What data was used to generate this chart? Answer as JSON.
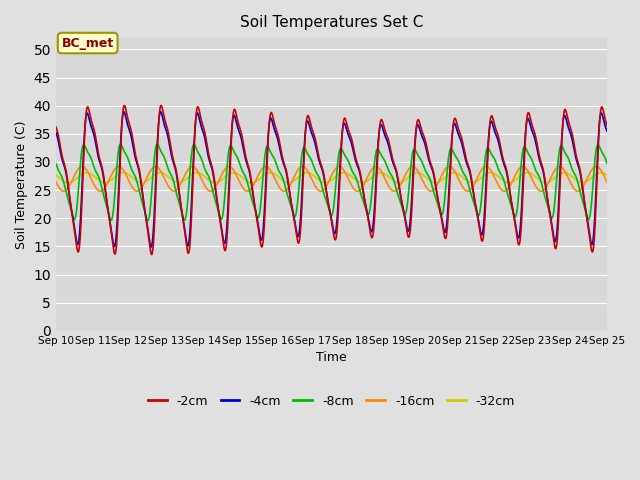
{
  "title": "Soil Temperatures Set C",
  "xlabel": "Time",
  "ylabel": "Soil Temperature (C)",
  "ylim": [
    0,
    52
  ],
  "yticks": [
    0,
    5,
    10,
    15,
    20,
    25,
    30,
    35,
    40,
    45,
    50
  ],
  "date_start": 10,
  "date_end": 25,
  "annotation": "BC_met",
  "legend": [
    "-2cm",
    "-4cm",
    "-8cm",
    "-16cm",
    "-32cm"
  ],
  "colors": [
    "#cc0000",
    "#0000cc",
    "#00bb00",
    "#ff8800",
    "#cccc00"
  ],
  "background_color": "#e0e0e0",
  "plot_bg_color": "#d8d8d8",
  "figsize": [
    6.4,
    4.8
  ],
  "dpi": 100,
  "mean_2": 28.0,
  "mean_4": 28.0,
  "mean_8": 27.0,
  "mean_16": 27.0,
  "mean_32": 27.2,
  "amp_2_base": 16.0,
  "amp_4_base": 14.5,
  "amp_8_base": 8.5,
  "amp_16_base": 2.2,
  "amp_32_base": 0.9,
  "skew": 0.3
}
